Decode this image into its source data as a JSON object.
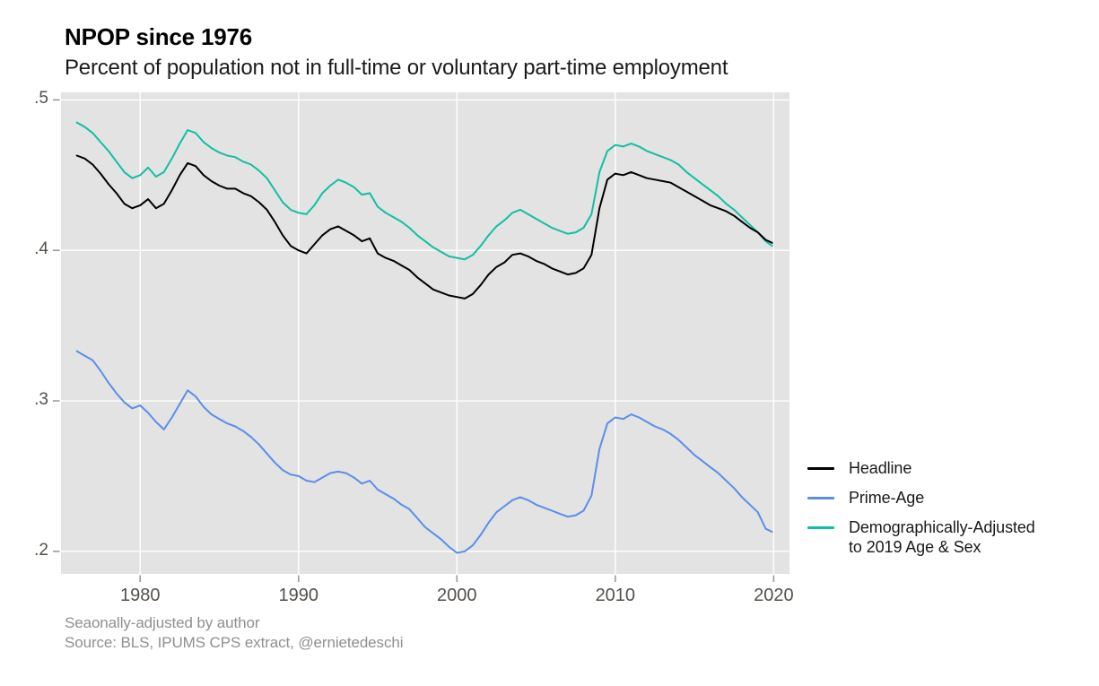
{
  "header": {
    "title": "NPOP since 1976",
    "subtitle": "Percent of population not in full-time or voluntary part-time employment"
  },
  "caption": {
    "line1": "Seaonally-adjusted by author",
    "line2": "Source: BLS, IPUMS CPS extract, @ernietedeschi"
  },
  "legend": {
    "position": "right",
    "items": [
      {
        "name": "Headline",
        "color": "#000000",
        "lines": [
          "Headline"
        ]
      },
      {
        "name": "Prime-Age",
        "color": "#5c8de8",
        "lines": [
          "Prime-Age"
        ]
      },
      {
        "name": "Demographically-Adjusted to 2019 Age & Sex",
        "color": "#10bfa5",
        "lines": [
          "Demographically-Adjusted",
          "to 2019 Age & Sex"
        ]
      }
    ]
  },
  "colors": {
    "panel_bg": "#e3e3e3",
    "gridline": "#ffffff",
    "tick_mark": "#9a9a9a",
    "tick_text": "#54504b",
    "caption_text": "#8f8f8f"
  },
  "chart_data": {
    "type": "line",
    "title": "NPOP since 1976",
    "subtitle": "Percent of population not in full-time or voluntary part-time employment",
    "xlabel": "",
    "ylabel": "",
    "xlim": [
      1975,
      2021
    ],
    "ylim": [
      0.185,
      0.505
    ],
    "grid": "white gridlines on gray panel",
    "legend_position": "right",
    "x_ticks": [
      {
        "value": 1980,
        "label": "1980"
      },
      {
        "value": 1990,
        "label": "1990"
      },
      {
        "value": 2000,
        "label": "2000"
      },
      {
        "value": 2010,
        "label": "2010"
      },
      {
        "value": 2020,
        "label": "2020"
      }
    ],
    "y_ticks": [
      {
        "value": 0.5,
        "label": ".5"
      },
      {
        "value": 0.4,
        "label": ".4"
      },
      {
        "value": 0.3,
        "label": ".3"
      },
      {
        "value": 0.2,
        "label": ".2"
      }
    ],
    "x": [
      1976,
      1976.5,
      1977,
      1977.5,
      1978,
      1978.5,
      1979,
      1979.5,
      1980,
      1980.5,
      1981,
      1981.5,
      1982,
      1982.5,
      1983,
      1983.5,
      1984,
      1984.5,
      1985,
      1985.5,
      1986,
      1986.5,
      1987,
      1987.5,
      1988,
      1988.5,
      1989,
      1989.5,
      1990,
      1990.5,
      1991,
      1991.5,
      1992,
      1992.5,
      1993,
      1993.5,
      1994,
      1994.5,
      1995,
      1995.5,
      1996,
      1996.5,
      1997,
      1997.5,
      1998,
      1998.5,
      1999,
      1999.5,
      2000,
      2000.5,
      2001,
      2001.5,
      2002,
      2002.5,
      2003,
      2003.5,
      2004,
      2004.5,
      2005,
      2005.5,
      2006,
      2006.5,
      2007,
      2007.5,
      2008,
      2008.5,
      2009,
      2009.5,
      2010,
      2010.5,
      2011,
      2011.5,
      2012,
      2012.5,
      2013,
      2013.5,
      2014,
      2014.5,
      2015,
      2015.5,
      2016,
      2016.5,
      2017,
      2017.5,
      2018,
      2018.5,
      2019,
      2019.5,
      2019.9
    ],
    "series": [
      {
        "name": "Headline",
        "color": "#000000",
        "values": [
          0.463,
          0.461,
          0.457,
          0.451,
          0.444,
          0.438,
          0.431,
          0.428,
          0.43,
          0.434,
          0.428,
          0.431,
          0.44,
          0.45,
          0.458,
          0.456,
          0.45,
          0.446,
          0.443,
          0.441,
          0.441,
          0.438,
          0.436,
          0.432,
          0.427,
          0.419,
          0.41,
          0.403,
          0.4,
          0.398,
          0.404,
          0.41,
          0.414,
          0.416,
          0.413,
          0.41,
          0.406,
          0.408,
          0.398,
          0.395,
          0.393,
          0.39,
          0.387,
          0.382,
          0.378,
          0.374,
          0.372,
          0.37,
          0.369,
          0.368,
          0.371,
          0.377,
          0.384,
          0.389,
          0.392,
          0.397,
          0.398,
          0.396,
          0.393,
          0.391,
          0.388,
          0.386,
          0.384,
          0.385,
          0.388,
          0.397,
          0.428,
          0.447,
          0.451,
          0.45,
          0.452,
          0.45,
          0.448,
          0.447,
          0.446,
          0.445,
          0.442,
          0.439,
          0.436,
          0.433,
          0.43,
          0.428,
          0.426,
          0.423,
          0.419,
          0.415,
          0.412,
          0.407,
          0.405
        ]
      },
      {
        "name": "Prime-Age",
        "color": "#5c8de8",
        "values": [
          0.333,
          0.33,
          0.327,
          0.32,
          0.312,
          0.305,
          0.299,
          0.295,
          0.297,
          0.292,
          0.286,
          0.281,
          0.289,
          0.298,
          0.307,
          0.303,
          0.296,
          0.291,
          0.288,
          0.285,
          0.283,
          0.28,
          0.276,
          0.271,
          0.265,
          0.259,
          0.254,
          0.251,
          0.25,
          0.247,
          0.246,
          0.249,
          0.252,
          0.253,
          0.252,
          0.249,
          0.245,
          0.247,
          0.241,
          0.238,
          0.235,
          0.231,
          0.228,
          0.222,
          0.216,
          0.212,
          0.208,
          0.203,
          0.199,
          0.2,
          0.204,
          0.211,
          0.219,
          0.226,
          0.23,
          0.234,
          0.236,
          0.234,
          0.231,
          0.229,
          0.227,
          0.225,
          0.223,
          0.224,
          0.227,
          0.237,
          0.268,
          0.285,
          0.289,
          0.288,
          0.291,
          0.289,
          0.286,
          0.283,
          0.281,
          0.278,
          0.274,
          0.269,
          0.264,
          0.26,
          0.256,
          0.252,
          0.247,
          0.242,
          0.236,
          0.231,
          0.226,
          0.215,
          0.213
        ]
      },
      {
        "name": "Demographically-Adjusted to 2019 Age & Sex",
        "color": "#10bfa5",
        "values": [
          0.485,
          0.482,
          0.478,
          0.472,
          0.466,
          0.459,
          0.452,
          0.448,
          0.45,
          0.455,
          0.449,
          0.452,
          0.461,
          0.471,
          0.48,
          0.478,
          0.472,
          0.468,
          0.465,
          0.463,
          0.462,
          0.459,
          0.457,
          0.453,
          0.448,
          0.44,
          0.432,
          0.427,
          0.425,
          0.424,
          0.43,
          0.438,
          0.443,
          0.447,
          0.445,
          0.442,
          0.437,
          0.438,
          0.429,
          0.425,
          0.422,
          0.419,
          0.415,
          0.41,
          0.406,
          0.402,
          0.399,
          0.396,
          0.395,
          0.394,
          0.397,
          0.403,
          0.41,
          0.416,
          0.42,
          0.425,
          0.427,
          0.424,
          0.421,
          0.418,
          0.415,
          0.413,
          0.411,
          0.412,
          0.415,
          0.424,
          0.452,
          0.466,
          0.47,
          0.469,
          0.471,
          0.469,
          0.466,
          0.464,
          0.462,
          0.46,
          0.457,
          0.452,
          0.448,
          0.444,
          0.44,
          0.436,
          0.431,
          0.427,
          0.422,
          0.417,
          0.412,
          0.406,
          0.403
        ]
      }
    ]
  }
}
